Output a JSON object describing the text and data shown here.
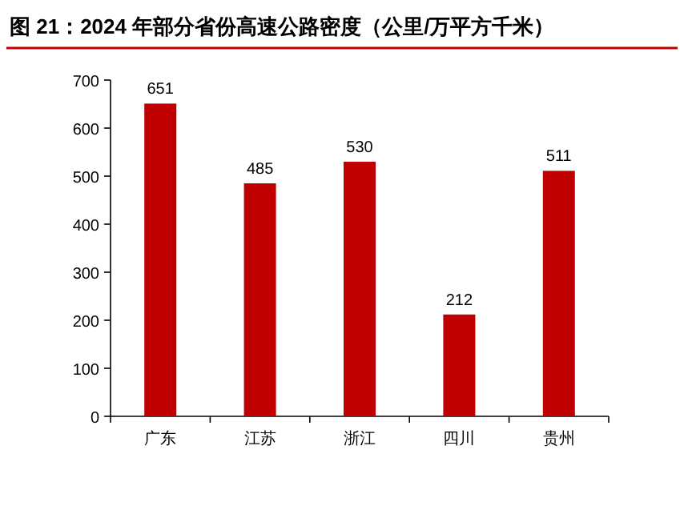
{
  "chart_data": {
    "type": "bar",
    "title": "图 21：2024 年部分省份高速公路密度（公里/万平方千米）",
    "categories": [
      "广东",
      "江苏",
      "浙江",
      "四川",
      "贵州"
    ],
    "values": [
      651,
      485,
      530,
      212,
      511
    ],
    "color": "#c00000",
    "ylim": [
      0,
      700
    ],
    "yticks": [
      0,
      100,
      200,
      300,
      400,
      500,
      600,
      700
    ],
    "data_labels": true,
    "grid": false
  }
}
